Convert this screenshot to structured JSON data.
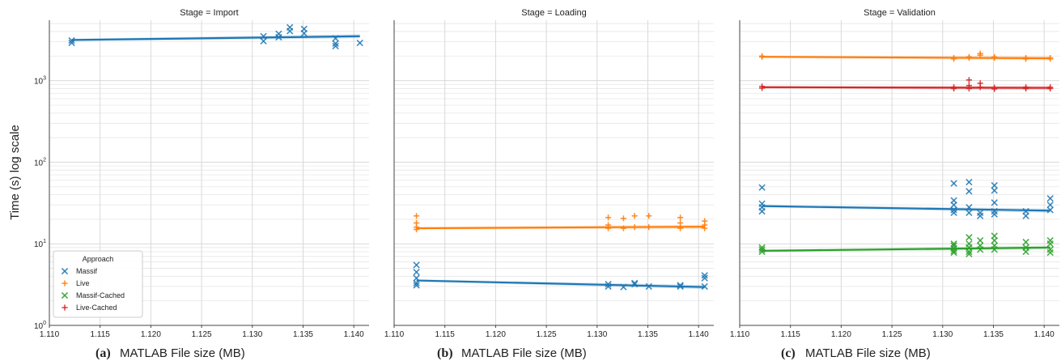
{
  "figure": {
    "ylabel": "Time (s) log scale",
    "y_tick_labels": [
      "10^0",
      "10^1",
      "10^2",
      "10^3"
    ],
    "x_tick_labels": [
      "1.110",
      "1.115",
      "1.120",
      "1.125",
      "1.130",
      "1.135",
      "1.140"
    ],
    "legend": {
      "title": "Approach",
      "entries": [
        {
          "name": "Massif",
          "color": "#1f77b4",
          "marker": "x"
        },
        {
          "name": "Live",
          "color": "#ff7f0e",
          "marker": "+"
        },
        {
          "name": "Massif-Cached",
          "color": "#2ca02c",
          "marker": "x"
        },
        {
          "name": "Live-Cached",
          "color": "#d62728",
          "marker": "+"
        }
      ]
    },
    "captions": [
      {
        "letter": "(a)",
        "text": "MATLAB File size (MB)"
      },
      {
        "letter": "(b)",
        "text": "MATLAB File size (MB)"
      },
      {
        "letter": "(c)",
        "text": "MATLAB File size (MB)"
      }
    ]
  },
  "chart_data": [
    {
      "type": "scatter",
      "title": "Stage = Import",
      "xlabel": "MATLAB File size (MB)",
      "ylabel": "Time (s) log scale",
      "xlim": [
        1.11,
        1.1415
      ],
      "ylim": [
        1,
        5500
      ],
      "yscale": "log",
      "grid": true,
      "legend": "bottom-left",
      "series": [
        {
          "name": "Massif",
          "color": "#1f77b4",
          "marker": "x",
          "points": [
            [
              1.1122,
              3100
            ],
            [
              1.1122,
              2900
            ],
            [
              1.1311,
              3500
            ],
            [
              1.1311,
              3050
            ],
            [
              1.1326,
              3750
            ],
            [
              1.1326,
              3400
            ],
            [
              1.1337,
              4500
            ],
            [
              1.1337,
              4050
            ],
            [
              1.1351,
              4300
            ],
            [
              1.1351,
              3800
            ],
            [
              1.1382,
              3300
            ],
            [
              1.1382,
              2850
            ],
            [
              1.1382,
              2650
            ],
            [
              1.1406,
              2900
            ]
          ],
          "fit": [
            [
              1.1122,
              3150
            ],
            [
              1.1406,
              3500
            ]
          ]
        }
      ]
    },
    {
      "type": "scatter",
      "title": "Stage = Loading",
      "xlabel": "MATLAB File size (MB)",
      "ylabel": "",
      "xlim": [
        1.11,
        1.1415
      ],
      "ylim": [
        1,
        5500
      ],
      "yscale": "log",
      "grid": true,
      "series": [
        {
          "name": "Massif",
          "color": "#1f77b4",
          "marker": "x",
          "points": [
            [
              1.1122,
              5.5
            ],
            [
              1.1122,
              4.5
            ],
            [
              1.1122,
              3.8
            ],
            [
              1.1122,
              3.3
            ],
            [
              1.1122,
              3.1
            ],
            [
              1.1311,
              3.2
            ],
            [
              1.1311,
              3.0
            ],
            [
              1.1326,
              2.95
            ],
            [
              1.1337,
              3.3
            ],
            [
              1.1337,
              3.2
            ],
            [
              1.1351,
              3.0
            ],
            [
              1.1382,
              3.1
            ],
            [
              1.1382,
              3.0
            ],
            [
              1.1406,
              4.1
            ],
            [
              1.1406,
              3.8
            ],
            [
              1.1406,
              3.0
            ]
          ],
          "fit": [
            [
              1.1122,
              3.55
            ],
            [
              1.1406,
              2.95
            ]
          ]
        },
        {
          "name": "Live",
          "color": "#ff7f0e",
          "marker": "+",
          "points": [
            [
              1.1122,
              22
            ],
            [
              1.1122,
              18
            ],
            [
              1.1122,
              16
            ],
            [
              1.1122,
              15
            ],
            [
              1.1311,
              21
            ],
            [
              1.1311,
              17
            ],
            [
              1.1311,
              15.5
            ],
            [
              1.1326,
              20.5
            ],
            [
              1.1326,
              15.5
            ],
            [
              1.1337,
              22
            ],
            [
              1.1337,
              16
            ],
            [
              1.1351,
              22
            ],
            [
              1.1351,
              16
            ],
            [
              1.1382,
              21
            ],
            [
              1.1382,
              18
            ],
            [
              1.1382,
              15.5
            ],
            [
              1.1406,
              19
            ],
            [
              1.1406,
              17
            ],
            [
              1.1406,
              15.5
            ]
          ],
          "fit": [
            [
              1.1122,
              15.5
            ],
            [
              1.1406,
              16.2
            ]
          ]
        }
      ]
    },
    {
      "type": "scatter",
      "title": "Stage = Validation",
      "xlabel": "MATLAB File size (MB)",
      "ylabel": "",
      "xlim": [
        1.11,
        1.1415
      ],
      "ylim": [
        1,
        5500
      ],
      "yscale": "log",
      "grid": true,
      "series": [
        {
          "name": "Massif",
          "color": "#1f77b4",
          "marker": "x",
          "points": [
            [
              1.1122,
              49
            ],
            [
              1.1122,
              31
            ],
            [
              1.1122,
              28
            ],
            [
              1.1122,
              25
            ],
            [
              1.1311,
              55
            ],
            [
              1.1311,
              34
            ],
            [
              1.1311,
              30
            ],
            [
              1.1311,
              26
            ],
            [
              1.1311,
              24
            ],
            [
              1.1326,
              57
            ],
            [
              1.1326,
              44
            ],
            [
              1.1326,
              28
            ],
            [
              1.1326,
              24
            ],
            [
              1.1337,
              24
            ],
            [
              1.1337,
              22
            ],
            [
              1.1351,
              52
            ],
            [
              1.1351,
              45
            ],
            [
              1.1351,
              32
            ],
            [
              1.1351,
              25
            ],
            [
              1.1351,
              23
            ],
            [
              1.1382,
              25
            ],
            [
              1.1382,
              22
            ],
            [
              1.1406,
              36
            ],
            [
              1.1406,
              30
            ],
            [
              1.1406,
              26
            ]
          ],
          "fit": [
            [
              1.1122,
              29
            ],
            [
              1.1406,
              25.5
            ]
          ]
        },
        {
          "name": "Live",
          "color": "#ff7f0e",
          "marker": "+",
          "points": [
            [
              1.1122,
              2000
            ],
            [
              1.1122,
              1950
            ],
            [
              1.1311,
              1900
            ],
            [
              1.1311,
              1850
            ],
            [
              1.1326,
              1950
            ],
            [
              1.1326,
              1900
            ],
            [
              1.1337,
              2150
            ],
            [
              1.1337,
              2050
            ],
            [
              1.1351,
              1950
            ],
            [
              1.1351,
              1900
            ],
            [
              1.1382,
              1900
            ],
            [
              1.1382,
              1850
            ],
            [
              1.1406,
              1900
            ],
            [
              1.1406,
              1850
            ]
          ],
          "fit": [
            [
              1.1122,
              1960
            ],
            [
              1.1406,
              1880
            ]
          ]
        },
        {
          "name": "Massif-Cached",
          "color": "#2ca02c",
          "marker": "x",
          "points": [
            [
              1.1122,
              9.0
            ],
            [
              1.1122,
              8.5
            ],
            [
              1.1122,
              8.0
            ],
            [
              1.1311,
              10
            ],
            [
              1.1311,
              9.5
            ],
            [
              1.1311,
              8.8
            ],
            [
              1.1311,
              8.2
            ],
            [
              1.1311,
              7.8
            ],
            [
              1.1326,
              12
            ],
            [
              1.1326,
              10
            ],
            [
              1.1326,
              9
            ],
            [
              1.1326,
              8
            ],
            [
              1.1326,
              7.5
            ],
            [
              1.1337,
              11
            ],
            [
              1.1337,
              9.5
            ],
            [
              1.1337,
              8.5
            ],
            [
              1.1351,
              12.5
            ],
            [
              1.1351,
              11
            ],
            [
              1.1351,
              9.5
            ],
            [
              1.1351,
              8.5
            ],
            [
              1.1382,
              10.5
            ],
            [
              1.1382,
              9
            ],
            [
              1.1382,
              8
            ],
            [
              1.1406,
              11
            ],
            [
              1.1406,
              10
            ],
            [
              1.1406,
              8.5
            ],
            [
              1.1406,
              7.8
            ]
          ],
          "fit": [
            [
              1.1122,
              8.2
            ],
            [
              1.1406,
              9.0
            ]
          ]
        },
        {
          "name": "Live-Cached",
          "color": "#d62728",
          "marker": "+",
          "points": [
            [
              1.1122,
              850
            ],
            [
              1.1122,
              810
            ],
            [
              1.1311,
              830
            ],
            [
              1.1311,
              800
            ],
            [
              1.1326,
              1020
            ],
            [
              1.1326,
              870
            ],
            [
              1.1326,
              800
            ],
            [
              1.1337,
              930
            ],
            [
              1.1337,
              830
            ],
            [
              1.1351,
              820
            ],
            [
              1.1351,
              790
            ],
            [
              1.1382,
              830
            ],
            [
              1.1382,
              800
            ],
            [
              1.1406,
              830
            ],
            [
              1.1406,
              800
            ]
          ],
          "fit": [
            [
              1.1122,
              830
            ],
            [
              1.1406,
              815
            ]
          ]
        }
      ]
    }
  ]
}
